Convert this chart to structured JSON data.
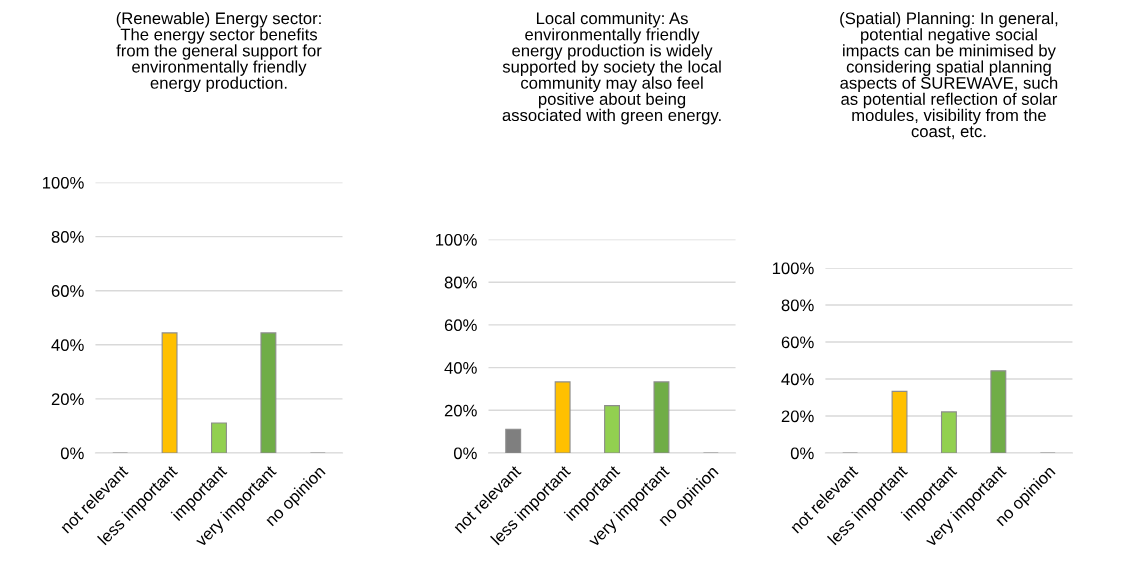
{
  "chart_data": [
    {
      "type": "bar",
      "title": "(Renewable) Energy sector:\nThe energy sector benefits\nfrom the general support for\nenvironmentally friendly\nenergy production.",
      "categories": [
        "not relevant",
        "less important",
        "important",
        "very important",
        "no opinion"
      ],
      "values": [
        0,
        44.4,
        11.1,
        44.4,
        0
      ],
      "colors": [
        "#7f7f7f",
        "#ffc000",
        "#92d050",
        "#70ad47",
        "#7f7f7f"
      ],
      "ylim": [
        0,
        100
      ],
      "yticks": [
        {
          "value": 0,
          "label": "0%"
        },
        {
          "value": 20,
          "label": "20%"
        },
        {
          "value": 40,
          "label": "40%"
        },
        {
          "value": 60,
          "label": "60%"
        },
        {
          "value": 80,
          "label": "80%"
        },
        {
          "value": 100,
          "label": "100%"
        }
      ],
      "grid": "y",
      "legend": false
    },
    {
      "type": "bar",
      "title": "Local community: As\nenvironmentally friendly\nenergy production is widely\nsupported by society the local\ncommunity may also feel\npositive about being\nassociated with green energy.",
      "categories": [
        "not relevant",
        "less important",
        "important",
        "very important",
        "no opinion"
      ],
      "values": [
        11.1,
        33.3,
        22.2,
        33.3,
        0
      ],
      "colors": [
        "#7f7f7f",
        "#ffc000",
        "#92d050",
        "#70ad47",
        "#7f7f7f"
      ],
      "ylim": [
        0,
        100
      ],
      "yticks": [
        {
          "value": 0,
          "label": "0%"
        },
        {
          "value": 20,
          "label": "20%"
        },
        {
          "value": 40,
          "label": "40%"
        },
        {
          "value": 60,
          "label": "60%"
        },
        {
          "value": 80,
          "label": "80%"
        },
        {
          "value": 100,
          "label": "100%"
        }
      ],
      "grid": "y",
      "legend": false
    },
    {
      "type": "bar",
      "title": "(Spatial) Planning: In general,\npotential negative social\nimpacts can be minimised by\nconsidering spatial planning\naspects of SUREWAVE, such\nas potential reflection of solar\nmodules, visibility from the\ncoast, etc.",
      "categories": [
        "not relevant",
        "less important",
        "important",
        "very important",
        "no opinion"
      ],
      "values": [
        0,
        33.3,
        22.2,
        44.4,
        0
      ],
      "colors": [
        "#7f7f7f",
        "#ffc000",
        "#92d050",
        "#70ad47",
        "#7f7f7f"
      ],
      "ylim": [
        0,
        100
      ],
      "yticks": [
        {
          "value": 0,
          "label": "0%"
        },
        {
          "value": 20,
          "label": "20%"
        },
        {
          "value": 40,
          "label": "40%"
        },
        {
          "value": 60,
          "label": "60%"
        },
        {
          "value": 80,
          "label": "80%"
        },
        {
          "value": 100,
          "label": "100%"
        }
      ],
      "grid": "y",
      "legend": false
    }
  ]
}
